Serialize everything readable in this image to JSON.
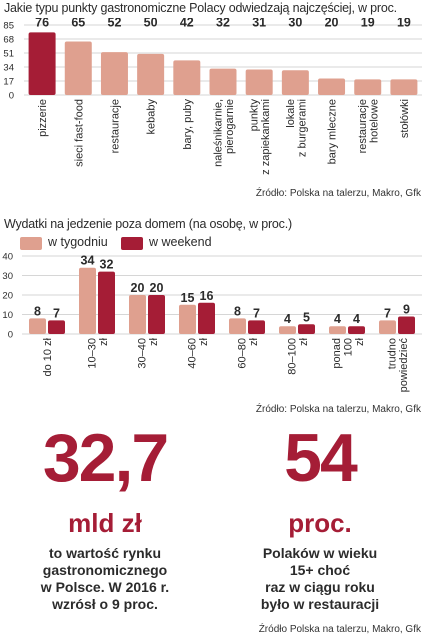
{
  "chart1_title": "Jakie typu punkty gastronomiczne Polacy odwiedzają najczęściej, w proc.",
  "chart1_source": "Źródło: Polska na talerzu, Makro, Gfk",
  "chart2_title": "Wydatki na jedzenie poza domem (na osobę, w proc.)",
  "chart2_source": "Źródło: Polska na talerzu, Makro, Gfk",
  "stat1": {
    "number": "32,7",
    "unit": "mld zł",
    "desc": [
      "to wartość rynku",
      "gastronomicznego",
      "w Polsce. W 2016 r.",
      "wzrósł o 9 proc."
    ]
  },
  "stat2": {
    "number": "54",
    "unit": "proc.",
    "desc": [
      "Polaków w wieku",
      "15+ choć",
      "raz w ciągu roku",
      "było w restauracji"
    ]
  },
  "bottom_source": "Źródło Polska na talerzu, Makro, Gfk",
  "colors": {
    "accent": "#a51d36",
    "light": "#dfa08f",
    "grid": "#c9c9c9",
    "text": "#2b2b2b"
  },
  "chart_data": [
    {
      "type": "bar",
      "title": "Jakie typu punkty gastronomiczne Polacy odwiedzają najczęściej, w proc.",
      "categories": [
        "pizzerie",
        "sieci fast-food",
        "restauracje",
        "kebaby",
        "bary, puby",
        "naleśnikarnie, pierogarnie",
        "punkty z zapiekankami",
        "lokale z burgerami",
        "bary mleczne",
        "restauracje hotelowe",
        "stołówki"
      ],
      "category_lines": [
        [
          "pizzerie"
        ],
        [
          "sieci fast-food"
        ],
        [
          "restauracje"
        ],
        [
          "kebaby"
        ],
        [
          "bary, puby"
        ],
        [
          "naleśnikarnie,",
          "pierogarnie"
        ],
        [
          "punkty",
          "z zapiekankami"
        ],
        [
          "lokale",
          "z burgerami"
        ],
        [
          "bary mleczne"
        ],
        [
          "restauracje",
          "hotelowe"
        ],
        [
          "stołówki"
        ]
      ],
      "values": [
        76,
        65,
        52,
        50,
        42,
        32,
        31,
        30,
        20,
        19,
        19
      ],
      "highlight_index": 0,
      "yticks": [
        0,
        17,
        34,
        51,
        68,
        85
      ],
      "ylim": [
        0,
        85
      ]
    },
    {
      "type": "bar",
      "title": "Wydatki na jedzenie poza domem (na osobę, w proc.)",
      "categories": [
        "do 10 zł",
        "10–30 zł",
        "30–40 zł",
        "40–60 zł",
        "60–80 zł",
        "80–100 zł",
        "ponad 100 zł",
        "trudno powiedzieć"
      ],
      "category_lines": [
        [
          "do 10 zł"
        ],
        [
          "10–30",
          "zł"
        ],
        [
          "30–40",
          "zł"
        ],
        [
          "40–60",
          "zł"
        ],
        [
          "60–80",
          "zł"
        ],
        [
          "80–100",
          "zł"
        ],
        [
          "ponad",
          "100",
          "zł"
        ],
        [
          "trudno",
          "powiedzieć"
        ]
      ],
      "series": [
        {
          "name": "w tygodniu",
          "values": [
            8,
            34,
            20,
            15,
            8,
            4,
            4,
            7
          ]
        },
        {
          "name": "w weekend",
          "values": [
            7,
            32,
            20,
            16,
            7,
            5,
            4,
            9
          ]
        }
      ],
      "yticks": [
        0,
        10,
        20,
        30,
        40
      ],
      "ylim": [
        0,
        40
      ]
    }
  ]
}
